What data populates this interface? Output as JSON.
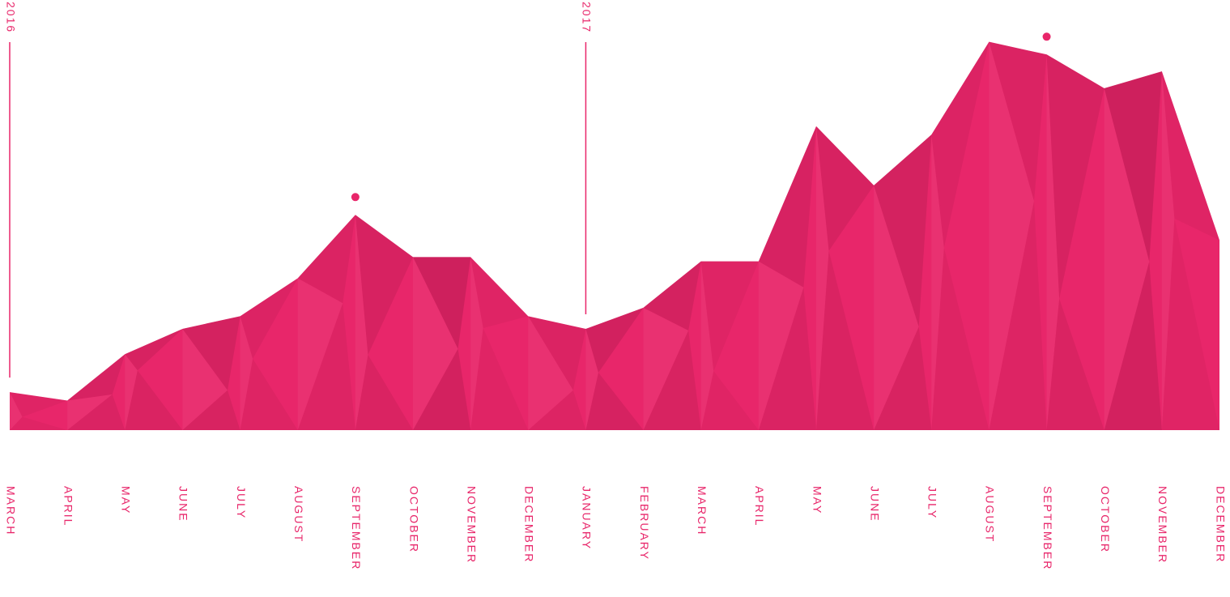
{
  "colors": {
    "accent": "#e8266a",
    "accent_dark": "#c31f57",
    "accent_deep": "#b81c52",
    "text": "#e8266a",
    "background": "#ffffff"
  },
  "chart_data": {
    "type": "area",
    "title": "",
    "xlabel": "",
    "ylabel": "",
    "x": [
      "2016-03",
      "2016-04",
      "2016-05",
      "2016-06",
      "2016-07",
      "2016-08",
      "2016-09",
      "2016-10",
      "2016-11",
      "2016-12",
      "2017-01",
      "2017-02",
      "2017-03",
      "2017-04",
      "2017-05",
      "2017-06",
      "2017-07",
      "2017-08",
      "2017-09",
      "2017-10",
      "2017-11",
      "2017-12"
    ],
    "categories": [
      "MARCH",
      "APRIL",
      "MAY",
      "JUNE",
      "JULY",
      "AUGUST",
      "SEPTEMBER",
      "OCTOBER",
      "NOVEMBER",
      "DECEMBER",
      "JANUARY",
      "FEBRUARY",
      "MARCH",
      "APRIL",
      "MAY",
      "JUNE",
      "JULY",
      "AUGUST",
      "SEPTEMBER",
      "OCTOBER",
      "NOVEMBER",
      "DECEMBER"
    ],
    "values": [
      9,
      7,
      18,
      24,
      27,
      36,
      51,
      41,
      41,
      27,
      24,
      29,
      40,
      40,
      72,
      58,
      70,
      92,
      89,
      81,
      85,
      45
    ],
    "ylim": [
      0,
      100
    ],
    "grid": false,
    "legend": "none",
    "year_markers": [
      {
        "label": "2016",
        "index": 0
      },
      {
        "label": "2017",
        "index": 10
      }
    ],
    "highlight_points": [
      6,
      18
    ]
  }
}
